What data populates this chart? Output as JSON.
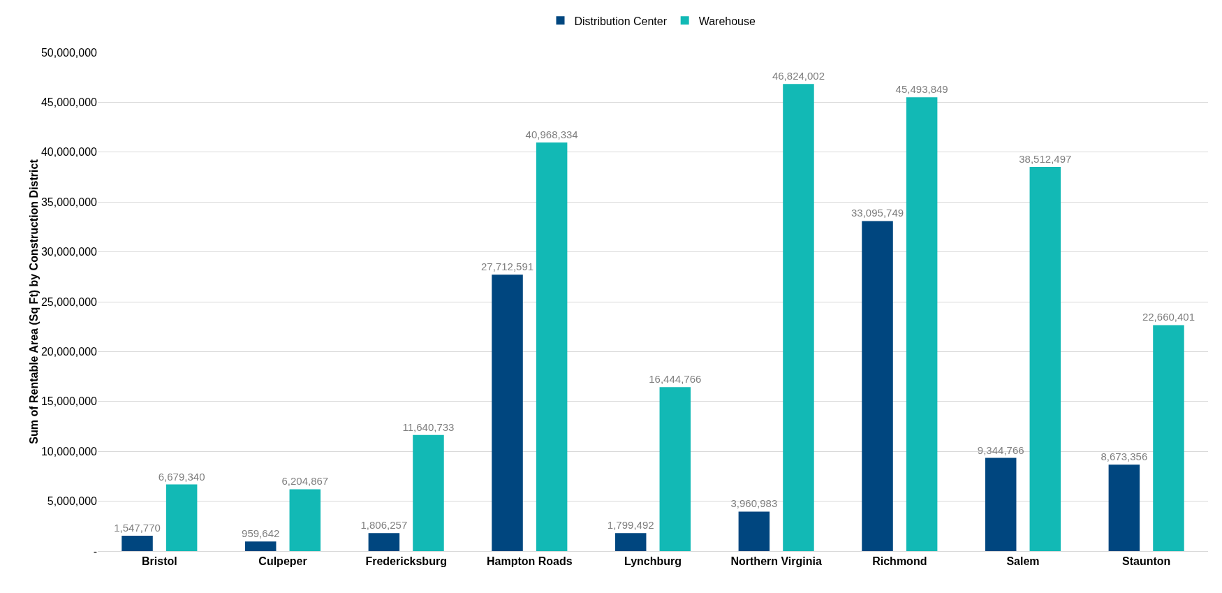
{
  "chart_data": {
    "type": "bar",
    "ylabel": "Sum of Rentable Area (Sq Ft) by Construction District",
    "categories": [
      "Bristol",
      "Culpeper",
      "Fredericksburg",
      "Hampton Roads",
      "Lynchburg",
      "Northern Virginia",
      "Richmond",
      "Salem",
      "Staunton"
    ],
    "series": [
      {
        "name": "Distribution Center",
        "color": "#00467f",
        "values": [
          1547770,
          959642,
          1806257,
          27712591,
          1799492,
          3960983,
          33095749,
          9344766,
          8673356
        ],
        "value_labels": [
          "1,547,770",
          "959,642",
          "1,806,257",
          "27,712,591",
          "1,799,492",
          "3,960,983",
          "33,095,749",
          "9,344,766",
          "8,673,356"
        ]
      },
      {
        "name": "Warehouse",
        "color": "#12b9b5",
        "values": [
          6679340,
          6204867,
          11640733,
          40968334,
          16444766,
          46824002,
          45493849,
          38512497,
          22660401
        ],
        "value_labels": [
          "6,679,340",
          "6,204,867",
          "11,640,733",
          "40,968,334",
          "16,444,766",
          "46,824,002",
          "45,493,849",
          "38,512,497",
          "22,660,401"
        ]
      }
    ],
    "ylim": [
      0,
      50000000
    ],
    "yticks": [
      {
        "value": 0,
        "label": "-"
      },
      {
        "value": 5000000,
        "label": "5,000,000"
      },
      {
        "value": 10000000,
        "label": "10,000,000"
      },
      {
        "value": 15000000,
        "label": "15,000,000"
      },
      {
        "value": 20000000,
        "label": "20,000,000"
      },
      {
        "value": 25000000,
        "label": "25,000,000"
      },
      {
        "value": 30000000,
        "label": "30,000,000"
      },
      {
        "value": 35000000,
        "label": "35,000,000"
      },
      {
        "value": 40000000,
        "label": "40,000,000"
      },
      {
        "value": 45000000,
        "label": "45,000,000"
      },
      {
        "value": 50000000,
        "label": "50,000,000"
      }
    ],
    "grid": "y",
    "legend": "top"
  }
}
